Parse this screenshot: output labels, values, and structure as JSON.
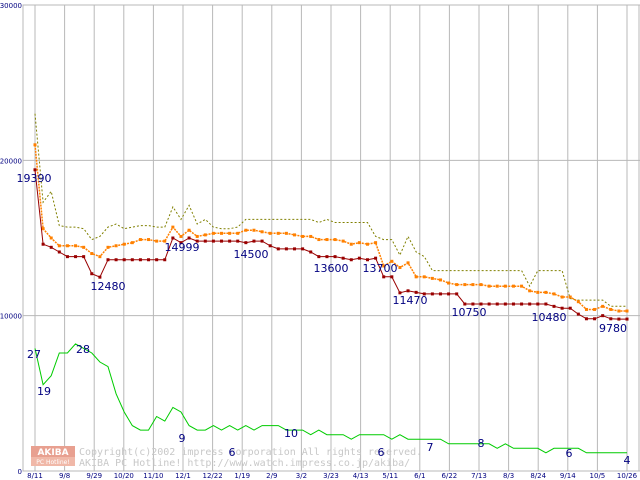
{
  "chart_data": {
    "type": "line",
    "title": "",
    "xlabel": "",
    "ylabel": "",
    "grid": true,
    "ylim": [
      0,
      30000
    ],
    "y_ticks": [
      0,
      10000,
      20000,
      30000
    ],
    "y_tick_labels": [
      "0",
      "10000",
      "20000",
      "30000"
    ],
    "x_tick_labels": [
      "8/11",
      "9/8",
      "9/29",
      "10/20",
      "11/10",
      "12/1",
      "12/22",
      "1/19",
      "2/9",
      "3/2",
      "3/23",
      "4/13",
      "5/11",
      "6/1",
      "6/22",
      "7/13",
      "8/3",
      "8/24",
      "9/14",
      "10/5",
      "10/26"
    ],
    "series": [
      {
        "role": "max-price",
        "color": "#808000",
        "style": "dotted",
        "values": [
          23000,
          17300,
          18000,
          15800,
          15700,
          15700,
          15600,
          14900,
          15100,
          15700,
          15900,
          15600,
          15700,
          15800,
          15800,
          15700,
          15700,
          17000,
          16200,
          17100,
          15900,
          16200,
          15700,
          15600,
          15600,
          15700,
          16200,
          16200,
          16200,
          16200,
          16200,
          16200,
          16200,
          16200,
          16200,
          16000,
          16200,
          16000,
          16000,
          16000,
          16000,
          16000,
          15100,
          14900,
          14900,
          13900,
          15100,
          14100,
          13800,
          12900,
          12900,
          12900,
          12900,
          12900,
          12900,
          12900,
          12900,
          12900,
          12900,
          12900,
          12900,
          11900,
          12900,
          12900,
          12900,
          12900,
          11100,
          11000,
          11000,
          11000,
          11000,
          10600,
          10600,
          10600
        ]
      },
      {
        "role": "average-price",
        "color": "#ff8000",
        "style": "dotted-markers",
        "values": [
          21000,
          15600,
          15000,
          14500,
          14500,
          14500,
          14400,
          14000,
          13800,
          14400,
          14500,
          14600,
          14700,
          14900,
          14900,
          14800,
          14800,
          15700,
          15100,
          15500,
          15100,
          15200,
          15300,
          15300,
          15300,
          15300,
          15500,
          15500,
          15400,
          15300,
          15300,
          15300,
          15200,
          15100,
          15100,
          14900,
          14900,
          14900,
          14800,
          14600,
          14700,
          14600,
          14700,
          13200,
          13500,
          13100,
          13400,
          12500,
          12500,
          12400,
          12300,
          12100,
          12000,
          12000,
          12000,
          12000,
          11900,
          11900,
          11900,
          11900,
          11900,
          11600,
          11500,
          11500,
          11400,
          11200,
          11200,
          10900,
          10400,
          10400,
          10600,
          10400,
          10300,
          10300
        ]
      },
      {
        "role": "minimum-price",
        "color": "#990000",
        "style": "solid-markers",
        "values": [
          19390,
          14600,
          14400,
          14100,
          13800,
          13800,
          13800,
          12700,
          12480,
          13600,
          13600,
          13600,
          13600,
          13600,
          13600,
          13600,
          13600,
          14999,
          14700,
          15000,
          14800,
          14800,
          14800,
          14800,
          14800,
          14800,
          14700,
          14800,
          14800,
          14500,
          14300,
          14300,
          14300,
          14300,
          14100,
          13800,
          13800,
          13800,
          13700,
          13600,
          13700,
          13600,
          13700,
          12500,
          12500,
          11470,
          11600,
          11500,
          11400,
          11400,
          11400,
          11400,
          11400,
          10750,
          10750,
          10750,
          10750,
          10750,
          10750,
          10750,
          10750,
          10750,
          10750,
          10750,
          10600,
          10480,
          10480,
          10100,
          9800,
          9800,
          10000,
          9800,
          9780,
          9780
        ]
      },
      {
        "role": "shop-count",
        "color": "#00cc00",
        "style": "solid",
        "values": [
          27,
          19,
          21,
          26,
          26,
          28,
          27,
          26,
          24,
          23,
          17,
          13,
          10,
          9,
          9,
          12,
          11,
          14,
          13,
          10,
          9,
          9,
          10,
          9,
          10,
          9,
          10,
          9,
          10,
          10,
          10,
          9,
          9,
          9,
          8,
          9,
          8,
          8,
          8,
          7,
          8,
          8,
          8,
          8,
          7,
          8,
          7,
          7,
          7,
          7,
          7,
          6,
          6,
          6,
          6,
          6,
          6,
          5,
          6,
          5,
          5,
          5,
          5,
          4,
          5,
          5,
          5,
          5,
          4,
          4,
          4,
          4,
          4,
          4
        ]
      }
    ],
    "annotations": [
      {
        "text": "19390",
        "color": "#000080"
      },
      {
        "text": "12480",
        "color": "#000080"
      },
      {
        "text": "14999",
        "color": "#000080"
      },
      {
        "text": "14500",
        "color": "#000080"
      },
      {
        "text": "13600",
        "color": "#000080"
      },
      {
        "text": "13700",
        "color": "#000080"
      },
      {
        "text": "11470",
        "color": "#000080"
      },
      {
        "text": "10750",
        "color": "#000080"
      },
      {
        "text": "10480",
        "color": "#000080"
      },
      {
        "text": "9780",
        "color": "#000080"
      },
      {
        "text": "27",
        "color": "#000080"
      },
      {
        "text": "19",
        "color": "#000080"
      },
      {
        "text": "28",
        "color": "#000080"
      },
      {
        "text": "9",
        "color": "#000080"
      },
      {
        "text": "6",
        "color": "#000080"
      },
      {
        "text": "10",
        "color": "#000080"
      },
      {
        "text": "6",
        "color": "#000080"
      },
      {
        "text": "7",
        "color": "#000080"
      },
      {
        "text": "8",
        "color": "#000080"
      },
      {
        "text": "6",
        "color": "#000080"
      },
      {
        "text": "4",
        "color": "#000080"
      }
    ]
  },
  "watermark": {
    "logo_top": "AKIBA",
    "logo_bottom": "PC Hotline!",
    "line1": "Copyright(c)2002 impress corporation All rights reserved.",
    "line2": "AKIBA PC Hotline!  http://www.watch.impress.co.jp/akiba/"
  },
  "colors": {
    "grid": "#b8b8b8",
    "axis_text": "#000080",
    "watermark_text": "#c8c8c8",
    "logo_bg": "#e8a090"
  }
}
